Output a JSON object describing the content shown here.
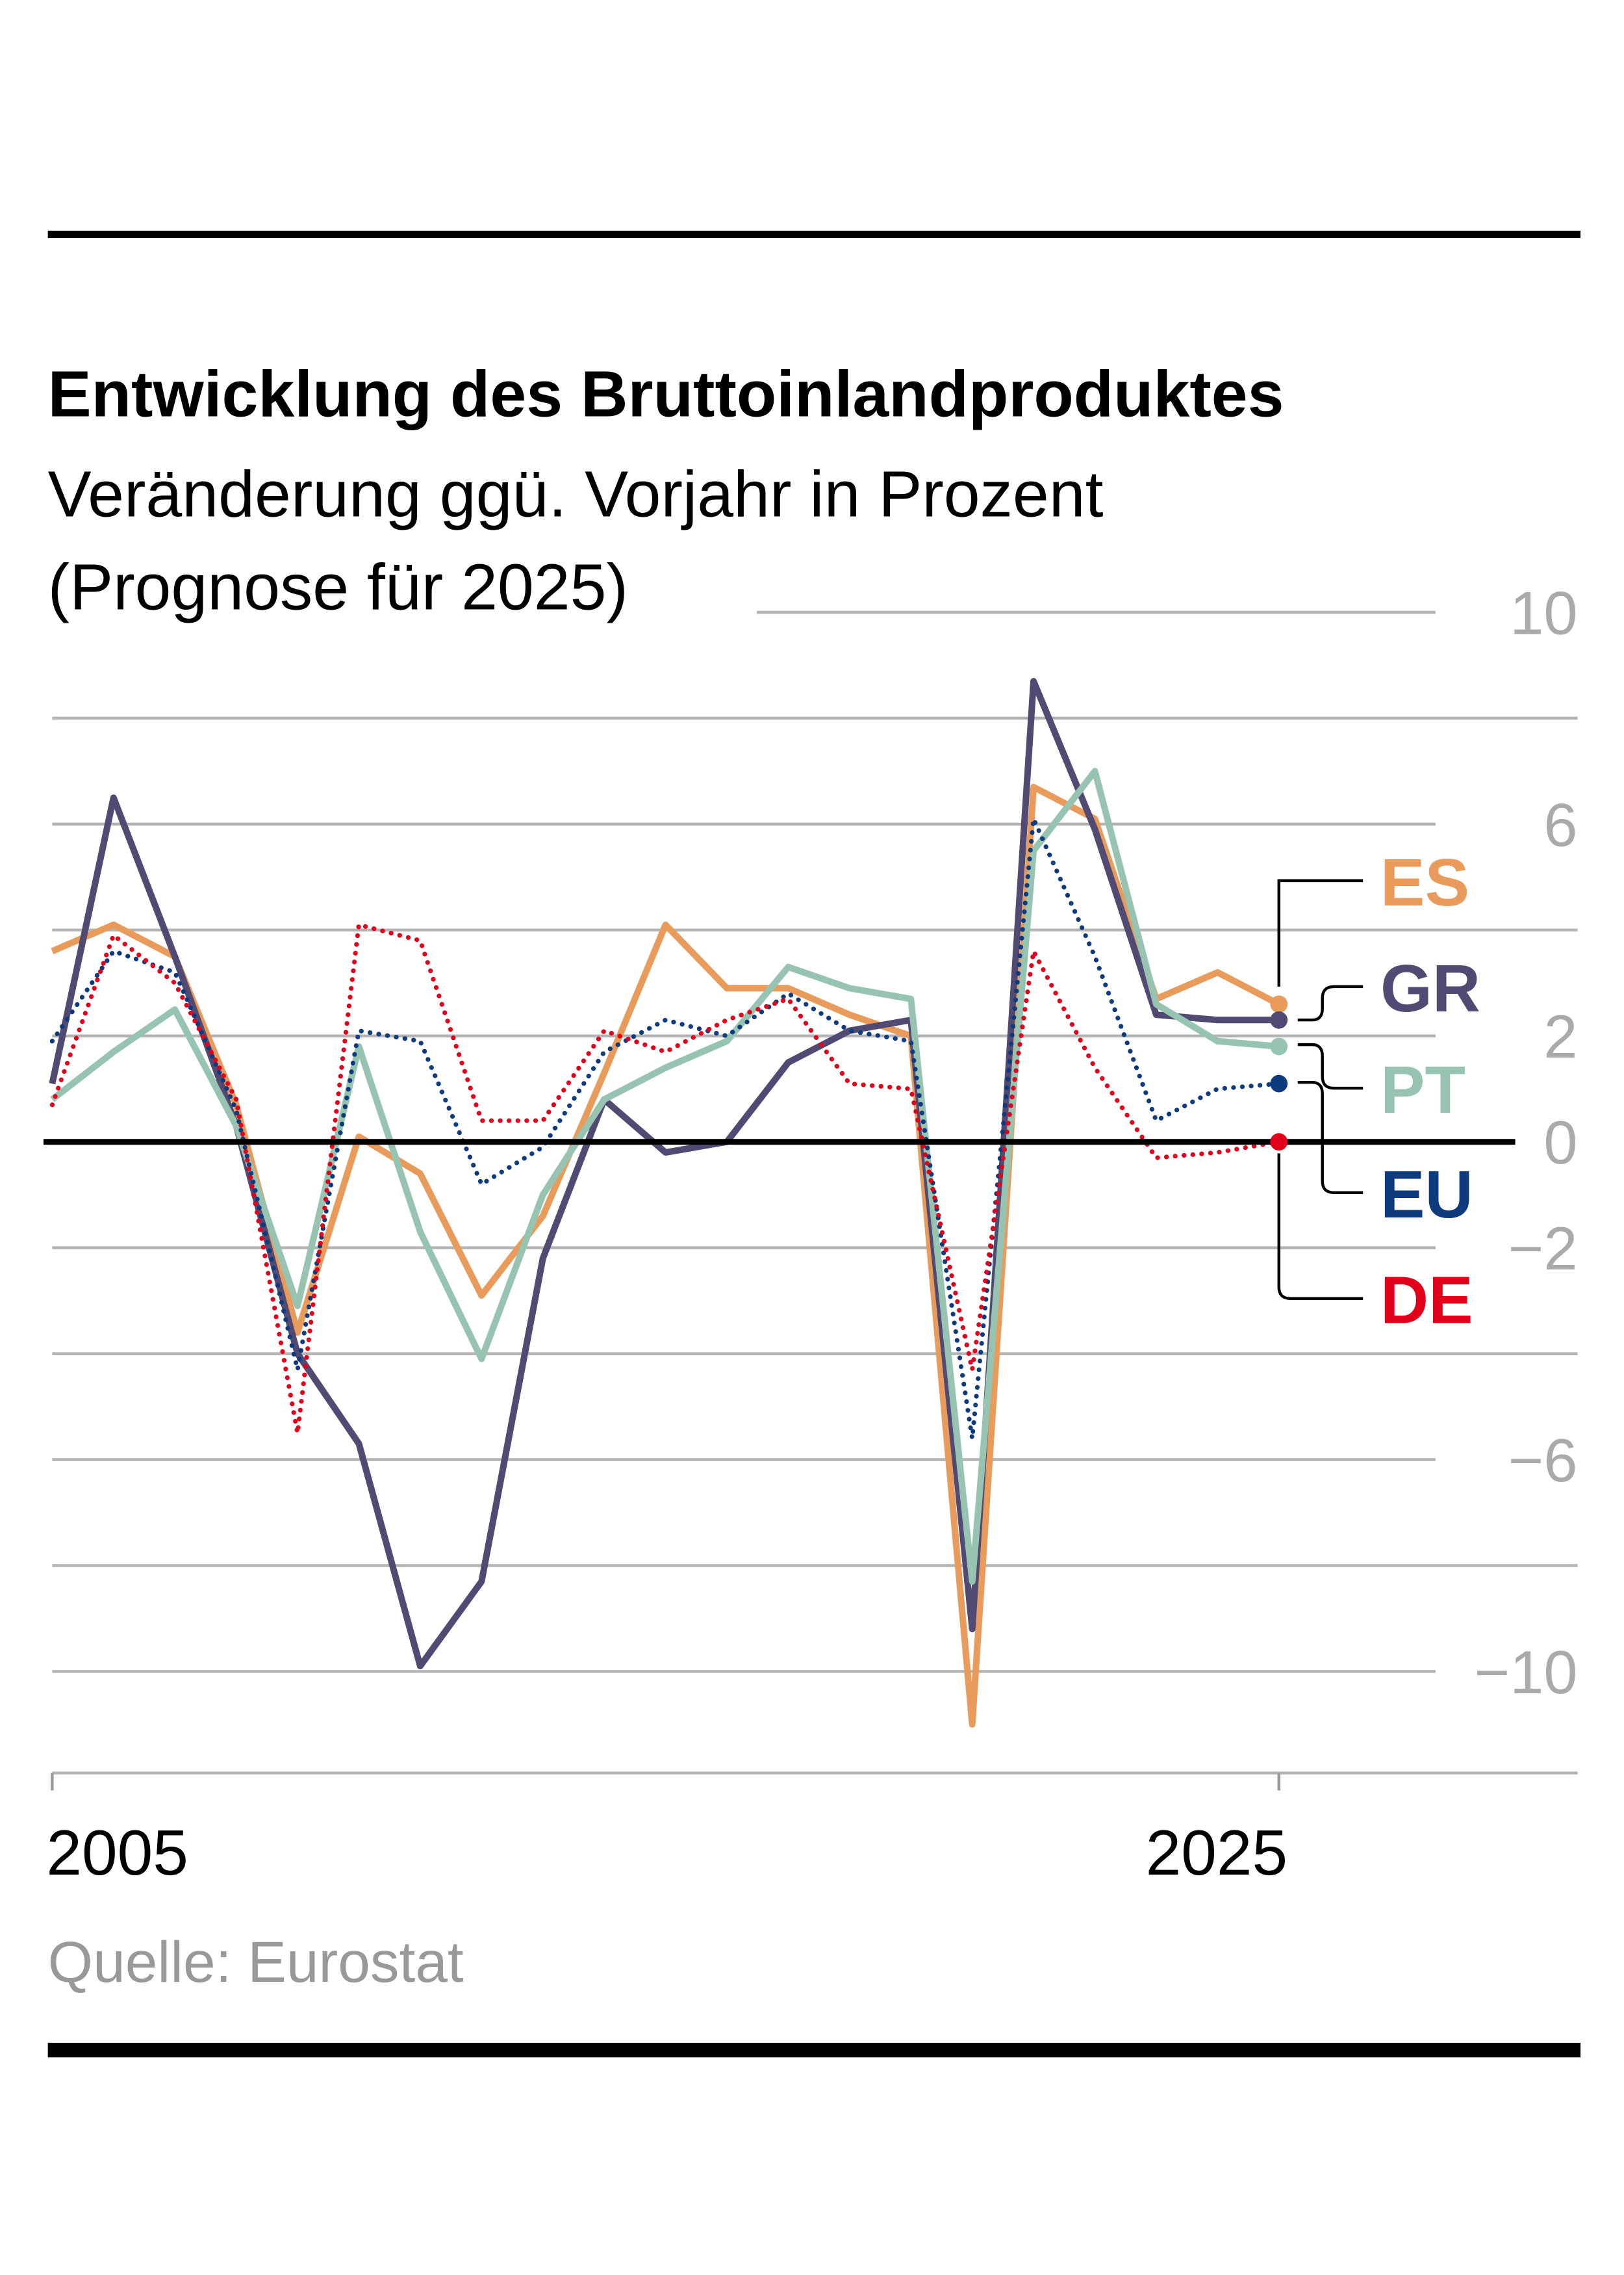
{
  "title": "Entwicklung des Bruttoinlandproduktes",
  "subtitle_line1": "Veränderung ggü. Vorjahr in Prozent",
  "subtitle_line2": "(Prognose für 2025)",
  "source": "Quelle: Eurostat",
  "chart_data": {
    "type": "line",
    "title": "Entwicklung des Bruttoinlandproduktes",
    "subtitle": "Veränderung ggü. Vorjahr in Prozent (Prognose für 2025)",
    "x": [
      2005,
      2006,
      2007,
      2008,
      2009,
      2010,
      2011,
      2012,
      2013,
      2014,
      2015,
      2016,
      2017,
      2018,
      2019,
      2020,
      2021,
      2022,
      2023,
      2024,
      2025
    ],
    "xlim": [
      2005,
      2025
    ],
    "ylim": [
      -12,
      10
    ],
    "x_tick_labels": [
      "2005",
      "2025"
    ],
    "y_ticks": [
      10,
      6,
      2,
      0,
      -2,
      -6,
      -10
    ],
    "y_tick_labels": [
      "10",
      "6",
      "2",
      "0",
      "−2",
      "−6",
      "−10"
    ],
    "gridlines": [
      10,
      8,
      6,
      4,
      2,
      -2,
      -4,
      -6,
      -8,
      -10
    ],
    "grid": true,
    "legend_placement": "right (direct labels at line ends)",
    "series": [
      {
        "name": "ES",
        "color": "#E89B5A",
        "style": "solid",
        "values": [
          3.6,
          4.1,
          3.5,
          0.7,
          -3.6,
          0.1,
          -0.6,
          -2.9,
          -1.4,
          1.3,
          4.1,
          2.9,
          2.9,
          2.4,
          2.0,
          -11.0,
          6.7,
          6.1,
          2.7,
          3.2,
          2.6
        ]
      },
      {
        "name": "GR",
        "color": "#514A72",
        "style": "solid",
        "values": [
          1.1,
          6.5,
          3.5,
          0.3,
          -4.0,
          -5.7,
          -9.9,
          -8.3,
          -2.2,
          0.8,
          -0.2,
          0.0,
          1.5,
          2.1,
          2.3,
          -9.2,
          8.7,
          5.9,
          2.4,
          2.3,
          2.3
        ]
      },
      {
        "name": "PT",
        "color": "#97C3B1",
        "style": "solid",
        "values": [
          0.8,
          1.7,
          2.5,
          0.3,
          -3.1,
          1.8,
          -1.7,
          -4.1,
          -1.0,
          0.8,
          1.4,
          1.9,
          3.3,
          2.9,
          2.7,
          -8.3,
          5.5,
          7.0,
          2.6,
          1.9,
          1.8
        ]
      },
      {
        "name": "EU",
        "color": "#0E3A7E",
        "style": "dotted",
        "values": [
          1.9,
          3.6,
          3.2,
          0.6,
          -4.3,
          2.1,
          1.9,
          -0.8,
          -0.1,
          1.7,
          2.3,
          2.0,
          2.8,
          2.1,
          1.9,
          -5.6,
          6.1,
          3.5,
          0.4,
          1.0,
          1.1
        ]
      },
      {
        "name": "DE",
        "color": "#E2001A",
        "style": "dotted",
        "values": [
          0.7,
          3.9,
          3.0,
          0.8,
          -5.5,
          4.1,
          3.8,
          0.4,
          0.4,
          2.1,
          1.7,
          2.3,
          2.7,
          1.1,
          1.0,
          -4.3,
          3.6,
          1.4,
          -0.3,
          -0.2,
          0.0
        ]
      }
    ]
  }
}
